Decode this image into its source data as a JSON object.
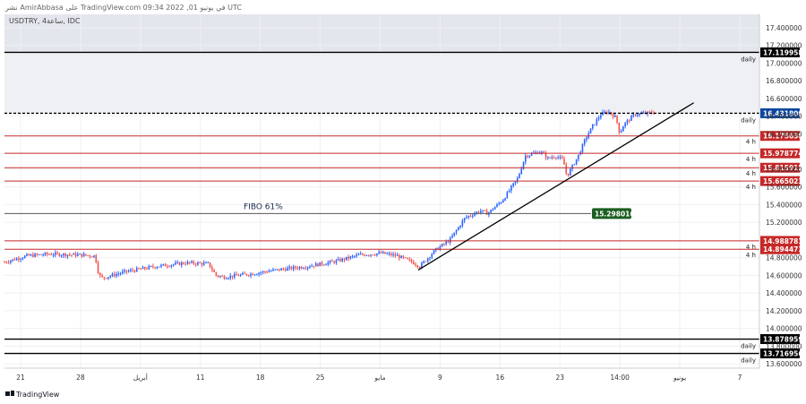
{
  "header": {
    "publish_line": "نشر AmirAbbasa على TradingView.com 09:34 2022 ,01 في يونيو UTC",
    "symbol_line": "USDTRY, 4ساعة, IDC"
  },
  "footer": {
    "logo_text": "TradingView"
  },
  "colors": {
    "up": "#2962ff",
    "down": "#ef5350",
    "red_line": "#c62828",
    "black_line": "#000000",
    "fibo_label_bg": "#1b5e20",
    "current_price_bg": "#0d47a1",
    "grid": "#eef0f3",
    "band_top": "#e3e6ec",
    "band_mid": "#eef0f4"
  },
  "chart_data": {
    "type": "candlestick",
    "ylim": [
      13.55,
      17.55
    ],
    "y_ticks": [
      "17.400000",
      "17.200000",
      "17.000000",
      "16.800000",
      "16.600000",
      "16.400000",
      "16.200000",
      "15.800000",
      "15.600000",
      "15.400000",
      "15.200000",
      "14.800000",
      "14.600000",
      "14.400000",
      "14.200000",
      "14.000000",
      "13.800000",
      "13.600000"
    ],
    "x_ticks": [
      "21",
      "28",
      "أبريل",
      "11",
      "18",
      "25",
      "مايو",
      "9",
      "16",
      "23",
      "14:00",
      "يونيو",
      "7"
    ],
    "horizontal_levels": [
      {
        "value": 17.119958,
        "label": "17.119958",
        "tag": "daily",
        "style": "black"
      },
      {
        "value": 16.4318,
        "label": "16.431800",
        "tag": "daily",
        "style": "current"
      },
      {
        "value": 16.17563,
        "label": "16.175630",
        "tag": "4 h",
        "style": "red"
      },
      {
        "value": 15.978774,
        "label": "15.978774",
        "tag": "4 h",
        "style": "red"
      },
      {
        "value": 15.815915,
        "label": "15.815915",
        "tag": "4 h",
        "style": "red"
      },
      {
        "value": 15.665023,
        "label": "15.665023",
        "tag": "4 h",
        "style": "red"
      },
      {
        "value": 14.988781,
        "label": "14.988781",
        "tag": "4 h",
        "style": "red"
      },
      {
        "value": 14.894473,
        "label": "14.894473",
        "tag": "4 h",
        "style": "red"
      },
      {
        "value": 13.878959,
        "label": "13.878959",
        "tag": "daily",
        "style": "black"
      },
      {
        "value": 13.716956,
        "label": "13.716956",
        "tag": "daily",
        "style": "black"
      }
    ],
    "fibo": {
      "value": 15.298016,
      "label": "15.298016",
      "text": "FIBO 61%"
    },
    "trendline": {
      "from": [
        0.548,
        14.66
      ],
      "to": [
        0.913,
        16.55
      ]
    },
    "price_path": [
      [
        0.0,
        14.75
      ],
      [
        0.03,
        14.82
      ],
      [
        0.06,
        14.84
      ],
      [
        0.1,
        14.83
      ],
      [
        0.12,
        14.82
      ],
      [
        0.125,
        14.6
      ],
      [
        0.13,
        14.57
      ],
      [
        0.16,
        14.64
      ],
      [
        0.2,
        14.7
      ],
      [
        0.24,
        14.74
      ],
      [
        0.27,
        14.73
      ],
      [
        0.28,
        14.6
      ],
      [
        0.29,
        14.58
      ],
      [
        0.33,
        14.62
      ],
      [
        0.36,
        14.66
      ],
      [
        0.4,
        14.7
      ],
      [
        0.44,
        14.76
      ],
      [
        0.47,
        14.83
      ],
      [
        0.5,
        14.85
      ],
      [
        0.52,
        14.82
      ],
      [
        0.54,
        14.75
      ],
      [
        0.55,
        14.7
      ],
      [
        0.57,
        14.88
      ],
      [
        0.59,
        15.0
      ],
      [
        0.61,
        15.25
      ],
      [
        0.63,
        15.33
      ],
      [
        0.64,
        15.3
      ],
      [
        0.66,
        15.45
      ],
      [
        0.68,
        15.7
      ],
      [
        0.69,
        15.95
      ],
      [
        0.71,
        16.0
      ],
      [
        0.72,
        15.92
      ],
      [
        0.73,
        15.95
      ],
      [
        0.74,
        15.9
      ],
      [
        0.745,
        15.72
      ],
      [
        0.76,
        15.95
      ],
      [
        0.77,
        16.15
      ],
      [
        0.78,
        16.3
      ],
      [
        0.79,
        16.42
      ],
      [
        0.8,
        16.45
      ],
      [
        0.81,
        16.38
      ],
      [
        0.815,
        16.2
      ],
      [
        0.82,
        16.3
      ],
      [
        0.835,
        16.42
      ],
      [
        0.85,
        16.43
      ],
      [
        0.86,
        16.44
      ]
    ]
  }
}
